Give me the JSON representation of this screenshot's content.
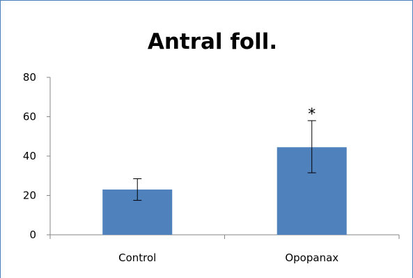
{
  "chart_data": {
    "type": "bar",
    "title": "Antral foll.",
    "xlabel": "",
    "ylabel": "",
    "categories": [
      "Control",
      "Opopanax"
    ],
    "values": [
      23,
      44.5
    ],
    "error_bars": [
      {
        "low": 17.5,
        "high": 28.5
      },
      {
        "low": 31.5,
        "high": 58
      }
    ],
    "annotations": [
      "",
      "*"
    ],
    "ylim": [
      0,
      80
    ],
    "yticks": [
      0,
      20,
      40,
      60,
      80
    ],
    "ytick_labels": [
      "0",
      "20",
      "40",
      "60",
      "80"
    ],
    "grid": false,
    "legend": "none",
    "bar_color": "#4f81bd",
    "axis_color": "#868686"
  }
}
